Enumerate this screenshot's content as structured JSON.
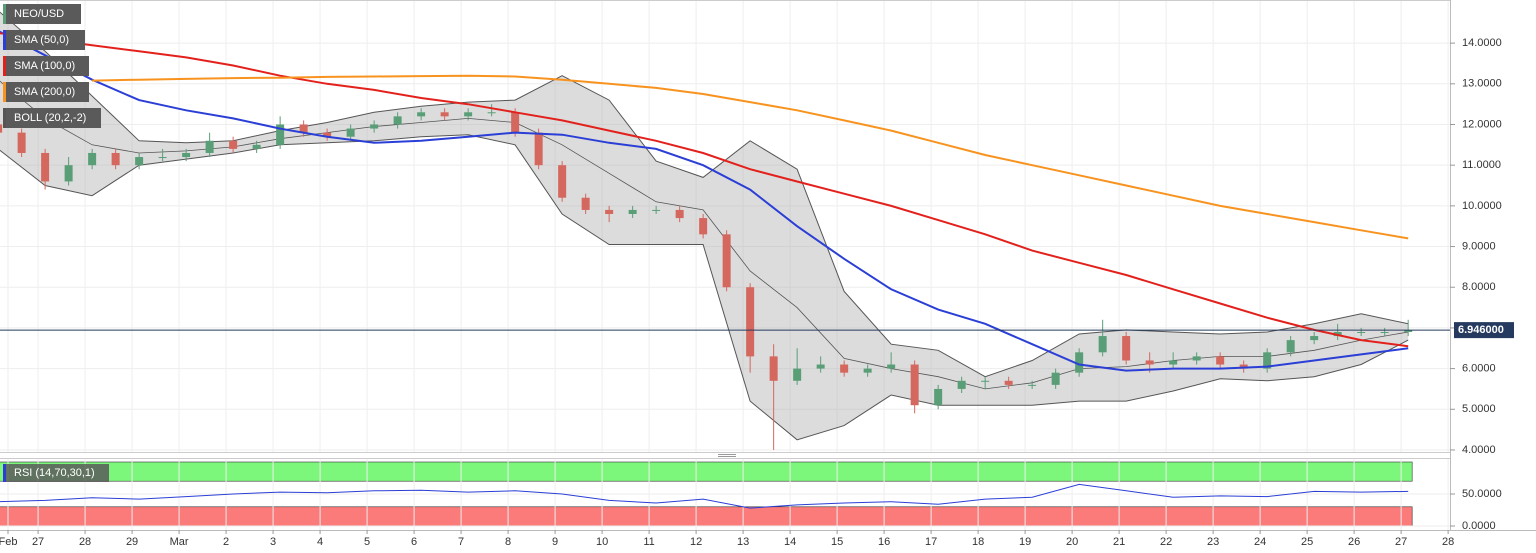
{
  "chart_data": [
    {
      "type": "candlestick",
      "title": "NEO/USD",
      "up_color": "#5a9e78",
      "down_color": "#d4675e",
      "x": [
        -0.85,
        -0.35,
        0.15,
        0.65,
        1.15,
        1.65,
        2.15,
        2.65,
        3.15,
        3.65,
        4.15,
        4.65,
        5.15,
        5.65,
        6.15,
        6.65,
        7.15,
        7.65,
        8.15,
        8.65,
        9.15,
        9.65,
        10.15,
        10.65,
        11.15,
        11.65,
        12.15,
        12.65,
        13.15,
        13.65,
        14.15,
        14.65,
        15.15,
        15.65,
        16.15,
        16.65,
        17.15,
        17.65,
        18.15,
        18.65,
        19.15,
        19.65,
        20.15,
        20.65,
        21.15,
        21.65,
        22.15,
        22.65,
        23.15,
        23.65,
        24.15,
        24.65,
        25.15,
        25.65,
        26.15,
        26.65,
        27.15,
        27.65,
        28.15,
        28.65,
        29.15
      ],
      "open": [
        12.0,
        11.8,
        11.3,
        10.6,
        11.0,
        11.3,
        11.0,
        11.2,
        11.2,
        11.3,
        11.6,
        11.4,
        11.5,
        12.0,
        11.8,
        11.7,
        11.9,
        12.0,
        12.2,
        12.3,
        12.2,
        12.3,
        12.3,
        11.8,
        11.0,
        10.2,
        9.9,
        9.8,
        9.9,
        9.9,
        9.7,
        9.3,
        8.0,
        6.3,
        5.7,
        6.0,
        6.1,
        5.9,
        6.0,
        6.1,
        5.1,
        5.5,
        5.7,
        5.7,
        5.6,
        5.6,
        5.9,
        6.4,
        6.8,
        6.2,
        6.1,
        6.2,
        6.3,
        6.1,
        6.0,
        6.4,
        6.7,
        6.8,
        6.9,
        6.9,
        6.9
      ],
      "high": [
        12.1,
        11.9,
        11.4,
        11.2,
        11.4,
        11.4,
        11.3,
        11.4,
        11.4,
        11.8,
        11.7,
        11.6,
        12.2,
        12.1,
        11.9,
        12.0,
        12.1,
        12.3,
        12.4,
        12.4,
        12.4,
        12.5,
        12.4,
        11.9,
        11.1,
        10.3,
        10.0,
        10.0,
        10.0,
        10.0,
        9.8,
        9.4,
        8.1,
        6.6,
        6.5,
        6.3,
        6.2,
        6.1,
        6.4,
        6.2,
        5.6,
        5.8,
        5.8,
        5.8,
        5.7,
        6.0,
        6.5,
        7.2,
        6.9,
        6.4,
        6.4,
        6.4,
        6.4,
        6.2,
        6.5,
        6.8,
        6.9,
        7.1,
        7.0,
        7.0,
        7.2
      ],
      "low": [
        11.7,
        11.2,
        10.4,
        10.5,
        10.9,
        10.9,
        10.9,
        11.1,
        11.1,
        11.2,
        11.3,
        11.3,
        11.4,
        11.7,
        11.6,
        11.6,
        11.8,
        11.9,
        12.1,
        12.1,
        12.1,
        12.2,
        11.7,
        10.9,
        10.1,
        9.8,
        9.6,
        9.7,
        9.8,
        9.6,
        9.2,
        7.9,
        5.9,
        4.0,
        5.6,
        5.9,
        5.8,
        5.8,
        5.9,
        4.9,
        5.0,
        5.4,
        5.5,
        5.5,
        5.5,
        5.5,
        5.8,
        6.3,
        6.1,
        5.9,
        6.0,
        6.1,
        6.0,
        5.9,
        5.9,
        6.3,
        6.6,
        6.7,
        6.8,
        6.8,
        6.8
      ],
      "close": [
        11.8,
        11.3,
        10.6,
        11.0,
        11.3,
        11.0,
        11.2,
        11.2,
        11.3,
        11.6,
        11.4,
        11.5,
        12.0,
        11.8,
        11.7,
        11.9,
        12.0,
        12.2,
        12.3,
        12.2,
        12.3,
        12.3,
        11.8,
        11.0,
        10.2,
        9.9,
        9.8,
        9.9,
        9.9,
        9.7,
        9.3,
        8.0,
        6.3,
        5.7,
        6.0,
        6.1,
        5.9,
        6.0,
        6.1,
        5.1,
        5.5,
        5.7,
        5.7,
        5.6,
        5.6,
        5.9,
        6.4,
        6.8,
        6.2,
        6.1,
        6.2,
        6.3,
        6.1,
        6.0,
        6.4,
        6.7,
        6.8,
        6.9,
        6.9,
        6.9,
        6.95
      ],
      "indicator_x": [
        -0.85,
        0.15,
        1.15,
        2.15,
        3.15,
        4.15,
        5.15,
        6.15,
        7.15,
        8.15,
        9.15,
        10.15,
        11.15,
        12.15,
        13.15,
        14.15,
        15.15,
        16.15,
        17.15,
        18.15,
        19.15,
        20.15,
        21.15,
        22.15,
        23.15,
        24.15,
        25.15,
        26.15,
        27.15,
        28.15,
        29.15
      ],
      "overlays": [
        {
          "name": "SMA (50,0)",
          "color": "#2b3fd6",
          "values": [
            14.3,
            13.7,
            13.1,
            12.6,
            12.35,
            12.15,
            11.9,
            11.7,
            11.55,
            11.6,
            11.7,
            11.8,
            11.75,
            11.55,
            11.4,
            11.0,
            10.4,
            9.5,
            8.7,
            7.95,
            7.45,
            7.1,
            6.6,
            6.1,
            5.95,
            6.0,
            6.0,
            6.05,
            6.2,
            6.35,
            6.5
          ]
        },
        {
          "name": "SMA (100,0)",
          "color": "#e3211c",
          "values": [
            14.25,
            14.1,
            13.95,
            13.8,
            13.65,
            13.45,
            13.2,
            13.0,
            12.85,
            12.65,
            12.5,
            12.3,
            12.1,
            11.85,
            11.6,
            11.3,
            10.9,
            10.6,
            10.3,
            10.0,
            9.65,
            9.3,
            8.9,
            8.6,
            8.3,
            7.95,
            7.6,
            7.25,
            6.95,
            6.7,
            6.55
          ]
        },
        {
          "name": "SMA (200,0)",
          "color": "#f7931e",
          "values": [
            null,
            null,
            13.08,
            13.1,
            13.12,
            13.14,
            13.15,
            13.17,
            13.18,
            13.19,
            13.2,
            13.18,
            13.1,
            13.0,
            12.9,
            12.75,
            12.55,
            12.35,
            12.1,
            11.85,
            11.55,
            11.25,
            11.0,
            10.75,
            10.5,
            10.25,
            10.0,
            9.8,
            9.6,
            9.4,
            9.2
          ]
        }
      ],
      "bollinger": {
        "name": "BOLL (20,2,-2)",
        "color": "#555555",
        "upper": [
          14.8,
          13.8,
          12.7,
          11.6,
          11.55,
          11.6,
          11.85,
          12.05,
          12.3,
          12.45,
          12.55,
          12.6,
          13.2,
          12.6,
          11.1,
          10.7,
          11.6,
          10.9,
          7.9,
          6.6,
          6.45,
          5.8,
          6.2,
          6.85,
          6.95,
          6.9,
          6.85,
          6.9,
          7.1,
          7.35,
          7.1
        ],
        "middle": [
          13.1,
          12.15,
          11.5,
          11.3,
          11.35,
          11.45,
          11.65,
          11.8,
          11.95,
          12.05,
          12.15,
          12.05,
          11.5,
          10.8,
          10.1,
          9.9,
          8.4,
          7.5,
          6.25,
          6.0,
          5.8,
          5.5,
          5.65,
          6.0,
          6.05,
          6.2,
          6.3,
          6.3,
          6.45,
          6.7,
          6.9
        ],
        "lower": [
          11.4,
          10.5,
          10.25,
          11.0,
          11.15,
          11.3,
          11.5,
          11.55,
          11.6,
          11.7,
          11.75,
          11.5,
          9.8,
          9.05,
          9.05,
          9.05,
          5.2,
          4.25,
          4.6,
          5.35,
          5.1,
          5.1,
          5.1,
          5.2,
          5.2,
          5.45,
          5.75,
          5.7,
          5.8,
          6.1,
          6.7
        ]
      },
      "price_line": {
        "value": 6.946,
        "label": "6.946000",
        "color": "#253a5e"
      },
      "xlim": [
        -0.81,
        30.04
      ],
      "xticks": [
        {
          "value": -0.64,
          "label": "Feb"
        },
        {
          "value": 0,
          "label": "27"
        },
        {
          "value": 1,
          "label": "28"
        },
        {
          "value": 2,
          "label": "29"
        },
        {
          "value": 3,
          "label": "Mar"
        },
        {
          "value": 4,
          "label": "2"
        },
        {
          "value": 5,
          "label": "3"
        },
        {
          "value": 6,
          "label": "4"
        },
        {
          "value": 7,
          "label": "5"
        },
        {
          "value": 8,
          "label": "6"
        },
        {
          "value": 9,
          "label": "7"
        },
        {
          "value": 10,
          "label": "8"
        },
        {
          "value": 11,
          "label": "9"
        },
        {
          "value": 12,
          "label": "10"
        },
        {
          "value": 13,
          "label": "11"
        },
        {
          "value": 14,
          "label": "12"
        },
        {
          "value": 15,
          "label": "13"
        },
        {
          "value": 16,
          "label": "14"
        },
        {
          "value": 17,
          "label": "15"
        },
        {
          "value": 18,
          "label": "16"
        },
        {
          "value": 19,
          "label": "17"
        },
        {
          "value": 20,
          "label": "18"
        },
        {
          "value": 21,
          "label": "19"
        },
        {
          "value": 22,
          "label": "20"
        },
        {
          "value": 23,
          "label": "21"
        },
        {
          "value": 24,
          "label": "22"
        },
        {
          "value": 25,
          "label": "23"
        },
        {
          "value": 26,
          "label": "24"
        },
        {
          "value": 27,
          "label": "25"
        },
        {
          "value": 28,
          "label": "26"
        },
        {
          "value": 29,
          "label": "27"
        },
        {
          "value": 30,
          "label": "28"
        }
      ],
      "ylim": [
        3.95,
        15.06
      ],
      "yticks": [
        {
          "value": 4,
          "label": "4.0000"
        },
        {
          "value": 5,
          "label": "5.0000"
        },
        {
          "value": 6,
          "label": "6.0000"
        },
        {
          "value": 7,
          "label": "7.0000"
        },
        {
          "value": 8,
          "label": "8.0000"
        },
        {
          "value": 9,
          "label": "9.0000"
        },
        {
          "value": 10,
          "label": "10.0000"
        },
        {
          "value": 11,
          "label": "11.0000"
        },
        {
          "value": 12,
          "label": "12.0000"
        },
        {
          "value": 13,
          "label": "13.0000"
        },
        {
          "value": 14,
          "label": "14.0000"
        }
      ],
      "grid": true
    },
    {
      "type": "line",
      "x": [
        -0.85,
        0.15,
        1.15,
        2.15,
        3.15,
        4.15,
        5.15,
        6.15,
        7.15,
        8.15,
        9.15,
        10.15,
        11.15,
        12.15,
        13.15,
        14.15,
        15.15,
        16.15,
        17.15,
        18.15,
        19.15,
        20.15,
        21.15,
        22.15,
        23.15,
        24.15,
        25.15,
        26.15,
        27.15,
        28.15,
        29.15
      ],
      "series": [
        {
          "name": "RSI (14,70,30,1)",
          "color": "#2b3fd6",
          "values": [
            38,
            40,
            44,
            42,
            46,
            50,
            53,
            52,
            55,
            56,
            53,
            55,
            50,
            40,
            36,
            42,
            28,
            33,
            36,
            38,
            34,
            42,
            45,
            65,
            55,
            45,
            47,
            46,
            54,
            53,
            54
          ]
        }
      ],
      "bands": [
        {
          "range": [
            70,
            100
          ],
          "color": "#7cf77c"
        },
        {
          "range": [
            0,
            30
          ],
          "color": "#fb7a7a"
        }
      ],
      "ylim": [
        -6.25,
        106.25
      ],
      "yticks": [
        {
          "value": 0,
          "label": "0.0000"
        },
        {
          "value": 50,
          "label": "50.0000"
        }
      ],
      "grid": true
    }
  ]
}
